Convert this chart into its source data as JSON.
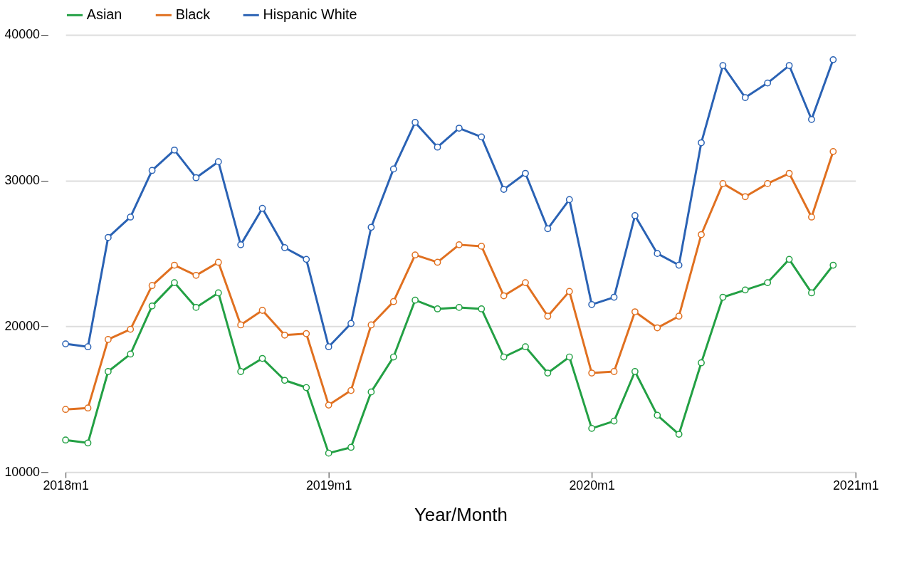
{
  "chart_data": {
    "type": "line",
    "xlabel": "Year/Month",
    "x": [
      "2018-01",
      "2018-02",
      "2018-03",
      "2018-04",
      "2018-05",
      "2018-06",
      "2018-07",
      "2018-08",
      "2018-09",
      "2018-10",
      "2018-11",
      "2018-12",
      "2019-01",
      "2019-02",
      "2019-03",
      "2019-04",
      "2019-05",
      "2019-06",
      "2019-07",
      "2019-08",
      "2019-09",
      "2019-10",
      "2019-11",
      "2019-12",
      "2020-01",
      "2020-02",
      "2020-03",
      "2020-04",
      "2020-05",
      "2020-06",
      "2020-07",
      "2020-08",
      "2020-09",
      "2020-10",
      "2020-11",
      "2020-12"
    ],
    "series": [
      {
        "name": "Asian",
        "color": "#23a044",
        "values": [
          12200,
          12000,
          16900,
          18100,
          21400,
          23000,
          21300,
          22300,
          16900,
          17800,
          16300,
          15800,
          11300,
          11700,
          15500,
          17900,
          21800,
          21200,
          21300,
          21200,
          17900,
          18600,
          16800,
          17900,
          13000,
          13500,
          16900,
          13900,
          12600,
          17500,
          22000,
          22500,
          23000,
          24600,
          22300,
          24200
        ]
      },
      {
        "name": "Black",
        "color": "#e07020",
        "values": [
          14300,
          14400,
          19100,
          19800,
          22800,
          24200,
          23500,
          24400,
          20100,
          21100,
          19400,
          19500,
          14600,
          15600,
          20100,
          21700,
          24900,
          24400,
          25600,
          25500,
          22100,
          23000,
          20700,
          22400,
          16800,
          16900,
          21000,
          19900,
          20700,
          26300,
          29800,
          28900,
          29800,
          30500,
          27500,
          32000
        ]
      },
      {
        "name": "Hispanic White",
        "color": "#2a62b4",
        "values": [
          18800,
          18600,
          26100,
          27500,
          30700,
          32100,
          30200,
          31300,
          25600,
          28100,
          25400,
          24600,
          18600,
          20200,
          26800,
          30800,
          34000,
          32300,
          33600,
          33000,
          29400,
          30500,
          26700,
          28700,
          21500,
          22000,
          27600,
          25000,
          24200,
          32600,
          37900,
          35700,
          36700,
          37900,
          34200,
          38300
        ]
      }
    ],
    "xlim": [
      "2018-01",
      "2021-01"
    ],
    "xticks": [
      {
        "value": "2018-01",
        "label": "2018m1"
      },
      {
        "value": "2019-01",
        "label": "2019m1"
      },
      {
        "value": "2020-01",
        "label": "2020m1"
      },
      {
        "value": "2021-01",
        "label": "2021m1"
      }
    ],
    "ylim": [
      10000,
      40000
    ],
    "yticks": [
      10000,
      20000,
      30000,
      40000
    ],
    "grid": "y",
    "legend": "top",
    "marker": "circle",
    "line_style": "solid"
  }
}
